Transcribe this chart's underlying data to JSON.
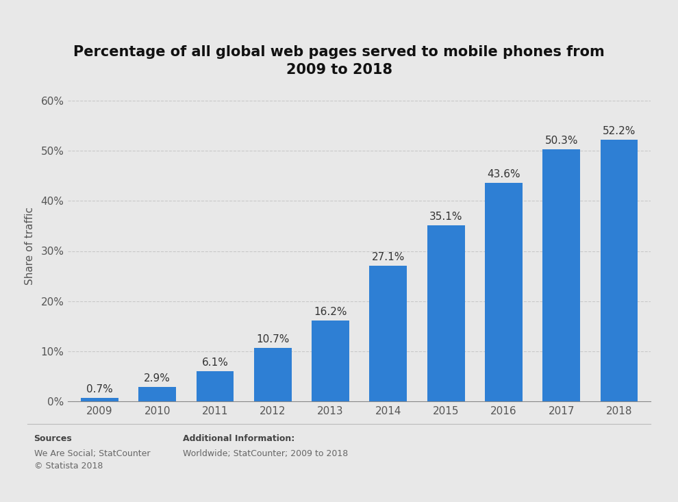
{
  "title": "Percentage of all global web pages served to mobile phones from\n2009 to 2018",
  "years": [
    "2009",
    "2010",
    "2011",
    "2012",
    "2013",
    "2014",
    "2015",
    "2016",
    "2017",
    "2018"
  ],
  "values": [
    0.7,
    2.9,
    6.1,
    10.7,
    16.2,
    27.1,
    35.1,
    43.6,
    50.3,
    52.2
  ],
  "bar_color": "#2e7fd4",
  "ylabel": "Share of traffic",
  "ylim": [
    0,
    62
  ],
  "yticks": [
    0,
    10,
    20,
    30,
    40,
    50,
    60
  ],
  "ytick_labels": [
    "0%",
    "10%",
    "20%",
    "30%",
    "40%",
    "50%",
    "60%"
  ],
  "bg_color": "#e8e8e8",
  "plot_bg_color": "#e8e8e8",
  "grid_color": "#c8c8c8",
  "title_fontsize": 15,
  "label_fontsize": 11,
  "tick_fontsize": 11,
  "bar_label_fontsize": 11,
  "sources_text": "Sources\nWe Are Social; StatCounter\n© Statista 2018",
  "additional_text": "Additional Information:\nWorldwide; StatCounter; 2009 to 2018",
  "footer_fontsize": 9
}
